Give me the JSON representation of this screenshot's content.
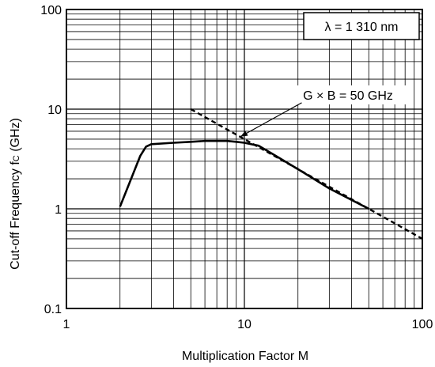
{
  "chart_data": {
    "type": "line",
    "xlabel": "Multiplication Factor  M",
    "ylabel": "Cut-off Frequency  fc (GHz)",
    "ylabel_main": "Cut-off Frequency  f",
    "ylabel_sub": "C",
    "ylabel_unit": " (GHz)",
    "xscale": "log",
    "yscale": "log",
    "xlim": [
      1,
      100
    ],
    "ylim": [
      0.1,
      100
    ],
    "x_ticks": [
      {
        "value": 1,
        "label": "1"
      },
      {
        "value": 10,
        "label": "10"
      },
      {
        "value": 100,
        "label": "100"
      }
    ],
    "y_ticks": [
      {
        "value": 0.1,
        "label": "0.1"
      },
      {
        "value": 1,
        "label": "1"
      },
      {
        "value": 10,
        "label": "10"
      },
      {
        "value": 100,
        "label": "100"
      }
    ],
    "grid": true,
    "series": [
      {
        "style": "solid",
        "x": [
          2.0,
          2.6,
          2.8,
          3.0,
          4.0,
          5.0,
          6.0,
          7.0,
          8.0,
          9.0,
          10.0,
          12.0,
          15.0,
          20.0,
          30.0,
          50.0
        ],
        "y": [
          1.05,
          3.4,
          4.2,
          4.45,
          4.6,
          4.7,
          4.8,
          4.8,
          4.8,
          4.7,
          4.6,
          4.3,
          3.4,
          2.5,
          1.6,
          1.0
        ]
      },
      {
        "style": "dashed",
        "x": [
          5.0,
          100.0
        ],
        "y": [
          10.0,
          0.5
        ]
      }
    ],
    "annotations": [
      {
        "text": "G × B = 50 GHz",
        "x": 21.0,
        "y": 11.6,
        "arrow_to": {
          "x": 9.5,
          "y": 5.3
        }
      },
      {
        "text": "λ = 1 310 nm",
        "position": "top-right",
        "boxed": true
      }
    ]
  }
}
